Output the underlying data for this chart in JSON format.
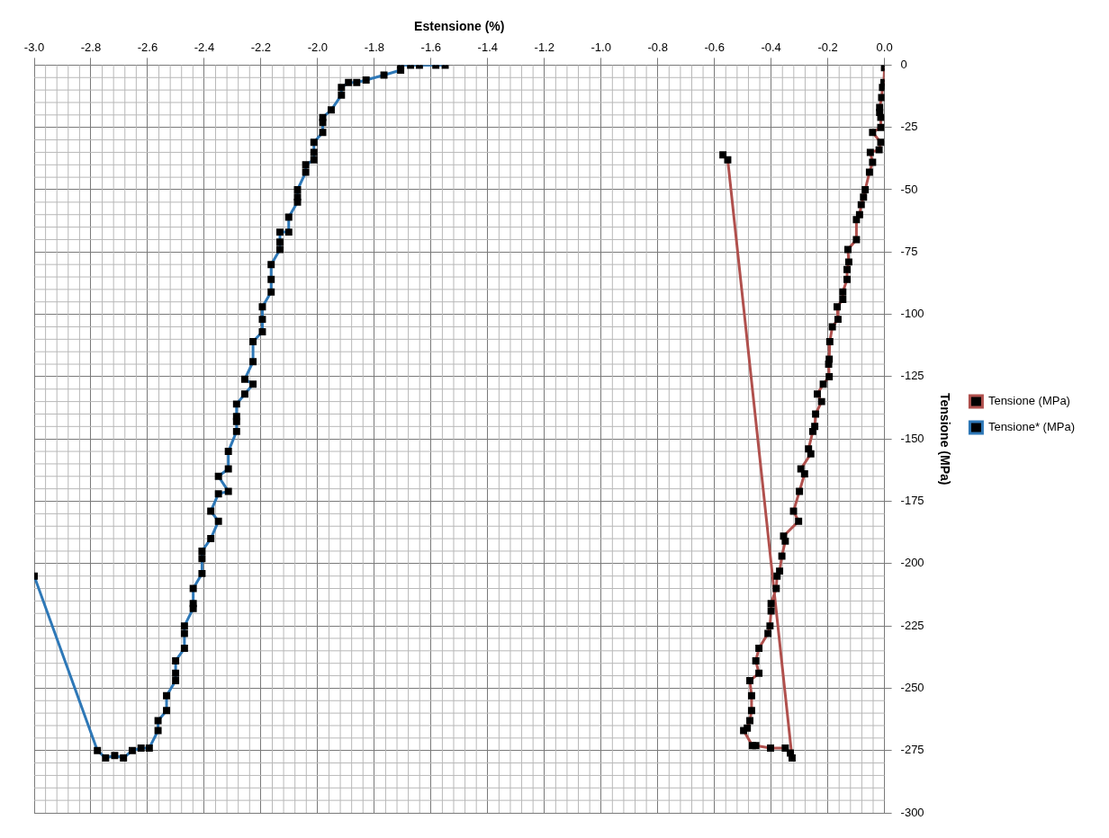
{
  "chart_data": {
    "type": "line",
    "xlabel": "Estensione (%)",
    "ylabel": "Tensione (MPa)",
    "xlim": [
      -3.0,
      0.0
    ],
    "ylim": [
      -300,
      0
    ],
    "xticks": [
      {
        "value": -3.0,
        "label": "-3.0"
      },
      {
        "value": -2.8,
        "label": "-2.8"
      },
      {
        "value": -2.6,
        "label": "-2.6"
      },
      {
        "value": -2.4,
        "label": "-2.4"
      },
      {
        "value": -2.2,
        "label": "-2.2"
      },
      {
        "value": -2.0,
        "label": "-2.0"
      },
      {
        "value": -1.8,
        "label": "-1.8"
      },
      {
        "value": -1.6,
        "label": "-1.6"
      },
      {
        "value": -1.4,
        "label": "-1.4"
      },
      {
        "value": -1.2,
        "label": "-1.2"
      },
      {
        "value": -1.0,
        "label": "-1.0"
      },
      {
        "value": -0.8,
        "label": "-0.8"
      },
      {
        "value": -0.6,
        "label": "-0.6"
      },
      {
        "value": -0.4,
        "label": "-0.4"
      },
      {
        "value": -0.2,
        "label": "-0.2"
      },
      {
        "value": 0.0,
        "label": "0.0"
      }
    ],
    "yticks": [
      0,
      -25,
      -50,
      -75,
      -100,
      -125,
      -150,
      -175,
      -200,
      -225,
      -250,
      -275,
      -300
    ],
    "grid": true,
    "legend": "right",
    "marker": "square",
    "line_style": "solid",
    "series": [
      {
        "name": "Tensione (MPa)",
        "color": "#b0504d",
        "x": [
          0.0,
          -0.002,
          -0.007,
          -0.01,
          -0.017,
          -0.017,
          -0.013,
          -0.013,
          -0.042,
          -0.013,
          -0.019,
          -0.05,
          -0.042,
          -0.053,
          -0.068,
          -0.074,
          -0.082,
          -0.088,
          -0.099,
          -0.099,
          -0.129,
          -0.126,
          -0.132,
          -0.132,
          -0.147,
          -0.147,
          -0.167,
          -0.164,
          -0.184,
          -0.193,
          -0.195,
          -0.197,
          -0.195,
          -0.216,
          -0.237,
          -0.222,
          -0.243,
          -0.246,
          -0.253,
          -0.268,
          -0.26,
          -0.295,
          -0.282,
          -0.3,
          -0.321,
          -0.303,
          -0.356,
          -0.35,
          -0.362,
          -0.37,
          -0.379,
          -0.382,
          -0.4,
          -0.4,
          -0.404,
          -0.411,
          -0.443,
          -0.454,
          -0.443,
          -0.475,
          -0.469,
          -0.469,
          -0.475,
          -0.484,
          -0.497,
          -0.466,
          -0.454,
          -0.402,
          -0.35,
          -0.332,
          -0.326,
          -0.553,
          -0.57
        ],
        "values": [
          -1,
          -7,
          -9,
          -13,
          -17,
          -19,
          -21,
          -25,
          -27,
          -31,
          -34,
          -35,
          -39,
          -43,
          -50,
          -53,
          -56,
          -60,
          -62,
          -70,
          -74,
          -79,
          -82,
          -86,
          -91,
          -94,
          -97,
          -102,
          -105,
          -111,
          -118,
          -120,
          -125,
          -128,
          -132,
          -135,
          -140,
          -145,
          -147,
          -154,
          -156,
          -162,
          -164,
          -171,
          -179,
          -183,
          -189,
          -191,
          -197,
          -203,
          -205,
          -210,
          -216,
          -219,
          -225,
          -228,
          -234,
          -239,
          -244,
          -247,
          -253,
          -259,
          -263,
          -266,
          -267,
          -273,
          -273,
          -274,
          -274,
          -276,
          -278,
          -38,
          -36
        ]
      },
      {
        "name": "Tensione* (MPa)",
        "color": "#2e78b7",
        "x": [
          -1.55,
          -1.583,
          -1.641,
          -1.672,
          -1.707,
          -1.707,
          -1.766,
          -1.829,
          -1.862,
          -1.891,
          -1.916,
          -1.916,
          -1.952,
          -1.982,
          -1.982,
          -1.982,
          -2.013,
          -2.013,
          -2.013,
          -2.042,
          -2.042,
          -2.071,
          -2.071,
          -2.071,
          -2.102,
          -2.102,
          -2.133,
          -2.133,
          -2.133,
          -2.164,
          -2.164,
          -2.164,
          -2.195,
          -2.195,
          -2.195,
          -2.228,
          -2.228,
          -2.257,
          -2.228,
          -2.257,
          -2.286,
          -2.286,
          -2.286,
          -2.286,
          -2.315,
          -2.315,
          -2.35,
          -2.315,
          -2.35,
          -2.377,
          -2.35,
          -2.377,
          -2.408,
          -2.408,
          -2.408,
          -2.439,
          -2.439,
          -2.439,
          -2.47,
          -2.47,
          -2.47,
          -2.501,
          -2.501,
          -2.501,
          -2.533,
          -2.533,
          -2.563,
          -2.563,
          -2.594,
          -2.623,
          -2.654,
          -2.685,
          -2.716,
          -2.748,
          -2.777,
          -3.0
        ],
        "values": [
          0,
          0,
          0,
          0,
          0,
          -2,
          -4,
          -6,
          -7,
          -7,
          -9,
          -12,
          -18,
          -21,
          -23,
          -27,
          -31,
          -35,
          -38,
          -40,
          -43,
          -50,
          -53,
          -55,
          -61,
          -67,
          -67,
          -71,
          -74,
          -80,
          -86,
          -91,
          -97,
          -102,
          -107,
          -111,
          -119,
          -126,
          -128,
          -132,
          -136,
          -141,
          -143,
          -147,
          -155,
          -162,
          -165,
          -171,
          -172,
          -179,
          -183,
          -190,
          -195,
          -198,
          -204,
          -210,
          -216,
          -218,
          -225,
          -228,
          -234,
          -239,
          -244,
          -247,
          -253,
          -259,
          -263,
          -267,
          -274,
          -274,
          -275,
          -278,
          -277,
          -278,
          -275,
          -205
        ]
      }
    ]
  }
}
